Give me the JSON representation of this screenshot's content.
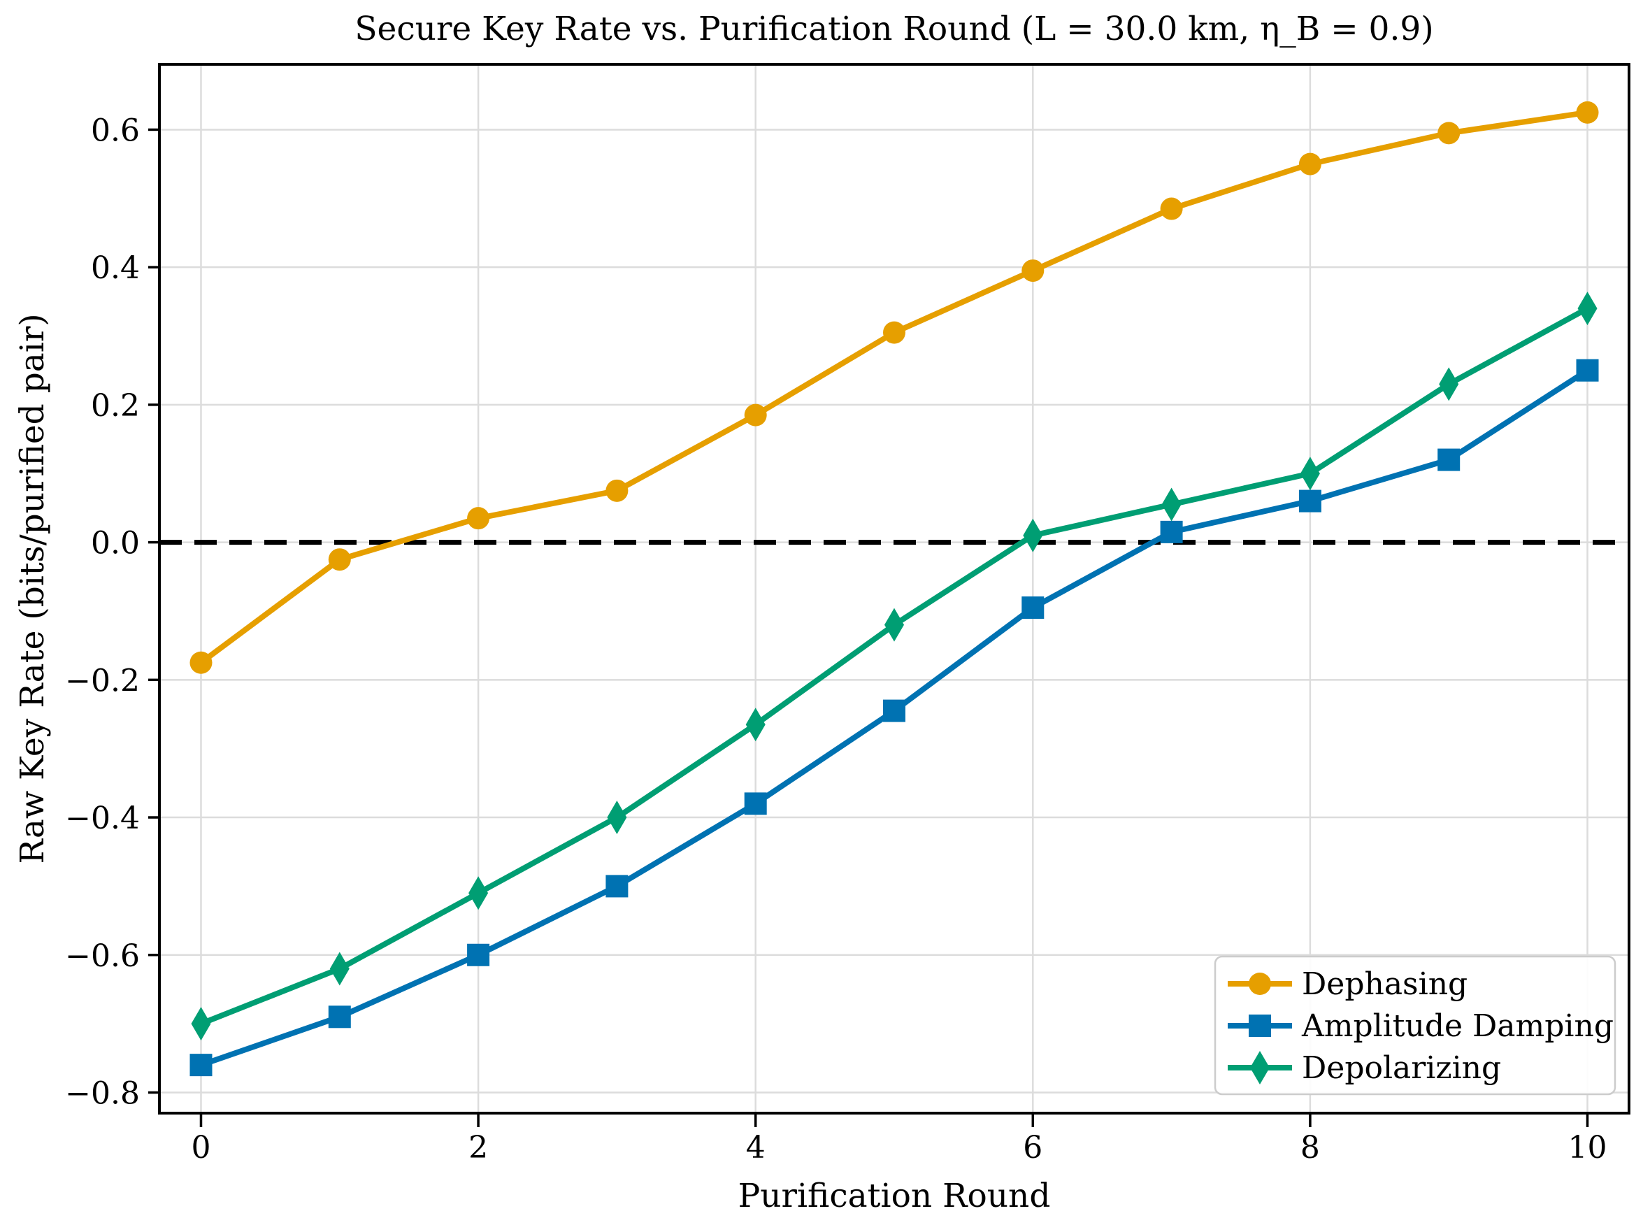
{
  "chart_data": {
    "type": "line",
    "title": "Secure Key Rate vs. Purification Round (L = 30.0 km, η_B = 0.9)",
    "xlabel": "Purification Round",
    "ylabel": "Raw Key Rate (bits/purified pair)",
    "x": [
      0,
      1,
      2,
      3,
      4,
      5,
      6,
      7,
      8,
      9,
      10
    ],
    "series": [
      {
        "name": "Dephasing",
        "color": "#E69F00",
        "marker": "circle",
        "values": [
          -0.175,
          -0.025,
          0.035,
          0.075,
          0.185,
          0.305,
          0.395,
          0.485,
          0.55,
          0.595,
          0.625
        ]
      },
      {
        "name": "Amplitude Damping",
        "color": "#0072B2",
        "marker": "square",
        "values": [
          -0.76,
          -0.69,
          -0.6,
          -0.5,
          -0.38,
          -0.245,
          -0.095,
          0.015,
          0.06,
          0.12,
          0.25
        ]
      },
      {
        "name": "Depolarizing",
        "color": "#009E73",
        "marker": "thin-diamond",
        "values": [
          -0.7,
          -0.62,
          -0.51,
          -0.4,
          -0.265,
          -0.12,
          0.01,
          0.055,
          0.1,
          0.23,
          0.34
        ]
      }
    ],
    "xticks": [
      0,
      2,
      4,
      6,
      8,
      10
    ],
    "yticks": [
      0.6,
      0.4,
      0.2,
      0.0,
      -0.2,
      -0.4,
      -0.6,
      -0.8
    ],
    "xlim": [
      -0.3,
      10.3
    ],
    "ylim": [
      -0.83,
      0.695
    ],
    "grid": true,
    "zero_line": {
      "value": 0.0,
      "style": "dashed",
      "color": "#000000"
    },
    "legend_position": "lower right",
    "colors": {
      "grid": "#dcdcdc",
      "spine": "#000000",
      "legend_border": "#cccccc",
      "background": "#ffffff"
    }
  }
}
